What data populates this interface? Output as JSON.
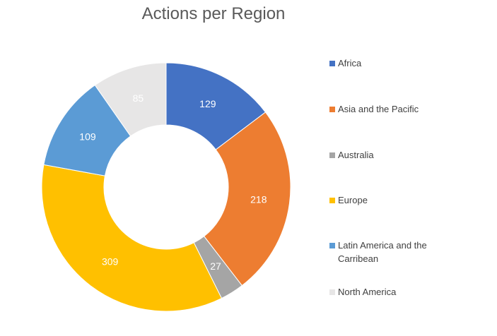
{
  "chart_data": {
    "type": "pie",
    "subtype": "donut",
    "title": "Actions per Region",
    "categories": [
      "Africa",
      "Asia and the Pacific",
      "Australia",
      "Europe",
      "Latin America and the Carribean",
      "North America"
    ],
    "values": [
      129,
      218,
      27,
      309,
      109,
      85
    ],
    "colors": [
      "#4472C4",
      "#ED7D31",
      "#A5A5A5",
      "#FFC000",
      "#5B9BD5",
      "#E7E6E6"
    ],
    "data_labels": true,
    "legend_position": "right"
  }
}
